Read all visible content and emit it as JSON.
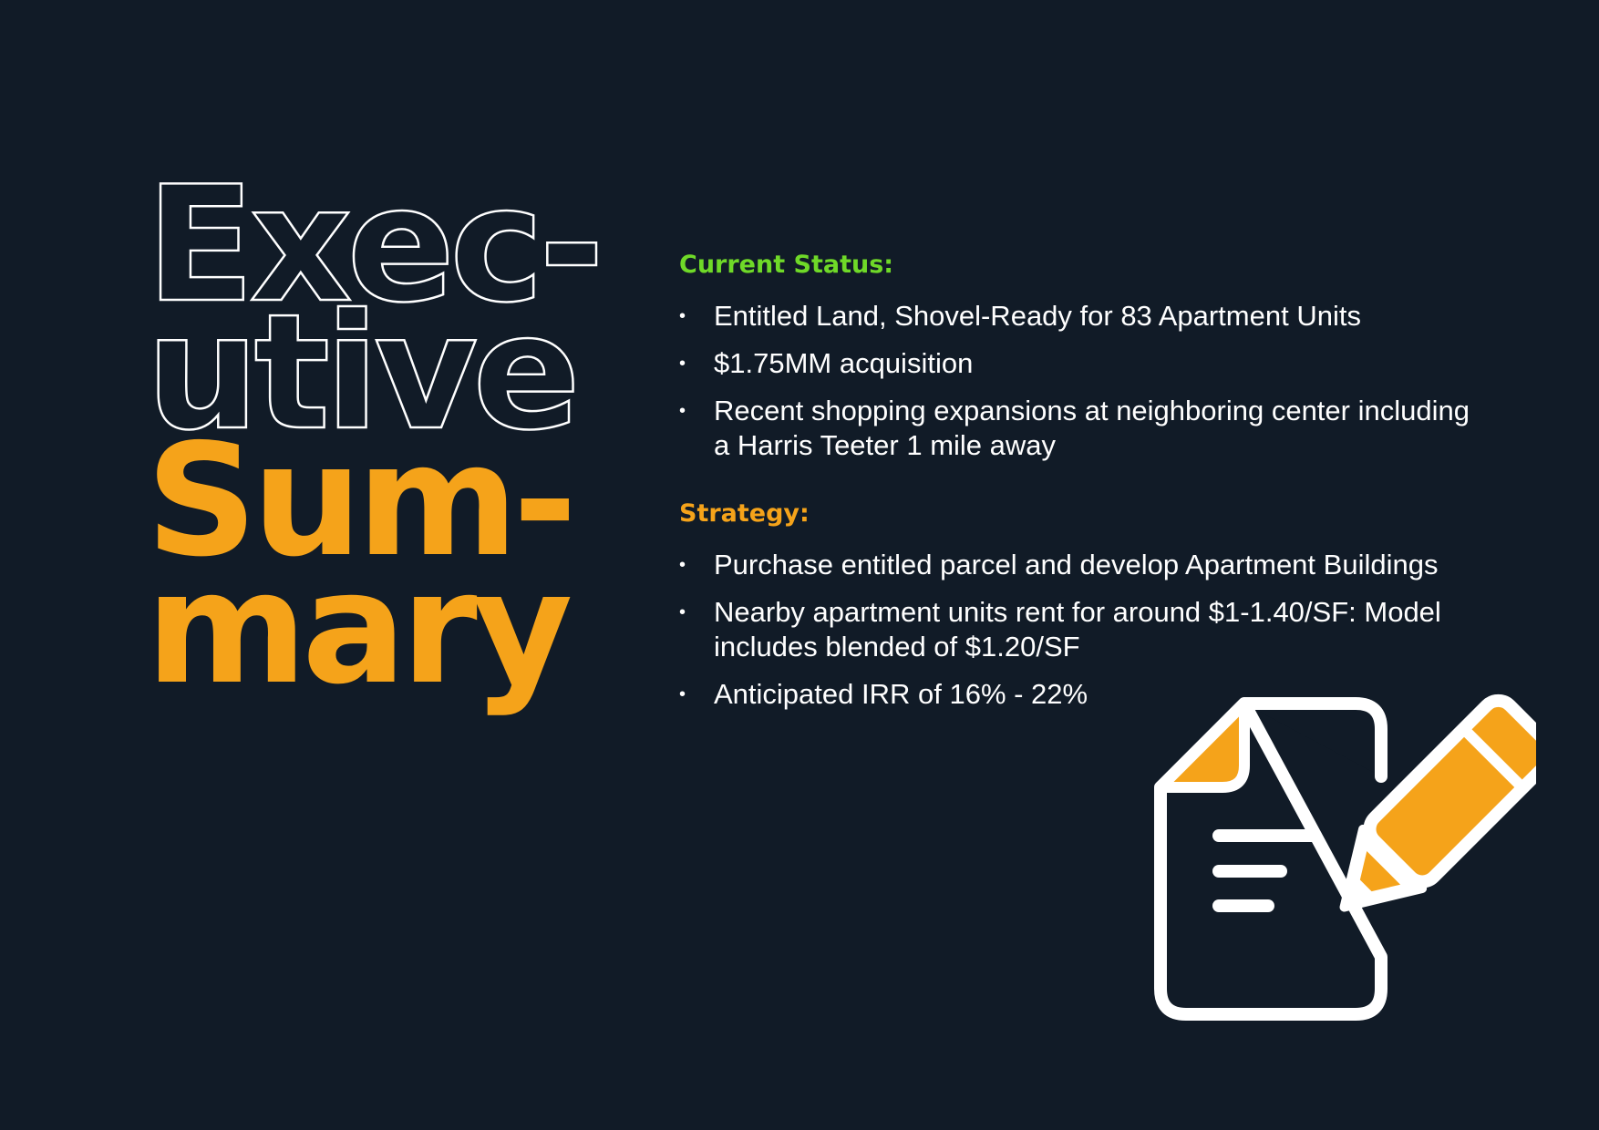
{
  "title": {
    "line1": "Exec-",
    "line2": "utive",
    "line3": "Sum-",
    "line4": "mary"
  },
  "current_status": {
    "heading": "Current Status:",
    "items": [
      "Entitled Land, Shovel-Ready for 83 Apartment Units",
      "$1.75MM acquisition",
      "Recent shopping expansions at neighboring center including a Harris Teeter 1 mile away"
    ]
  },
  "strategy": {
    "heading": "Strategy:",
    "items": [
      "Purchase entitled parcel and develop Apartment Buildings",
      "Nearby apartment units rent for around $1-1.40/SF: Model includes blended of $1.20/SF",
      "Anticipated IRR of 16% - 22%"
    ]
  },
  "bullet_glyph": "•",
  "icon": "document-edit-icon",
  "colors": {
    "background": "#111b27",
    "accent_orange": "#f5a31a",
    "accent_green": "#6fd928",
    "text": "#ffffff"
  }
}
